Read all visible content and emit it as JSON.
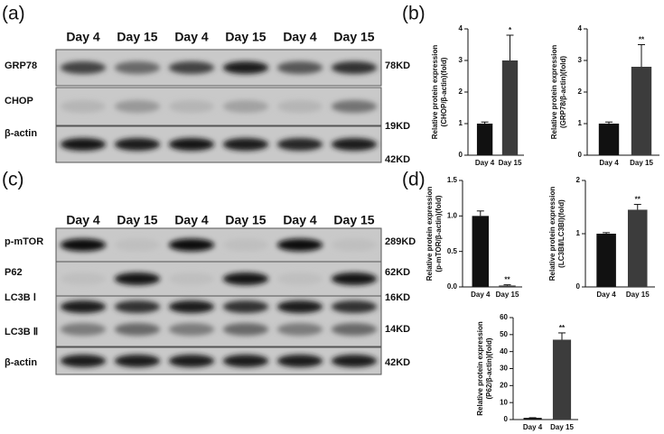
{
  "panel_labels": [
    "(a)",
    "(b)",
    "(c)",
    "(d)"
  ],
  "blots": [
    {
      "header": [
        "Day 4",
        "Day 15",
        "Day 4",
        "Day 15",
        "Day 4",
        "Day 15"
      ],
      "rows": [
        {
          "label": "GRP78",
          "kd": "78KD"
        },
        {
          "label": "CHOP",
          "kd": "19KD"
        },
        {
          "label": "β-actin",
          "kd": "42KD"
        }
      ]
    },
    {
      "header": [
        "Day 4",
        "Day 15",
        "Day 4",
        "Day 15",
        "Day 4",
        "Day 15"
      ],
      "rows": [
        {
          "label": "p-mTOR",
          "kd": "289KD"
        },
        {
          "label": "P62",
          "kd": "62KD"
        },
        {
          "label": "LC3B Ⅰ",
          "kd": "16KD"
        },
        {
          "label": "LC3B Ⅱ",
          "kd": "14KD"
        },
        {
          "label": "β-actin",
          "kd": "42KD"
        }
      ]
    }
  ],
  "chart_data": [
    {
      "type": "bar",
      "ylabel": [
        "Relative protein expression",
        "(CHOP/β-actin)(fold)"
      ],
      "categories": [
        "Day 4",
        "Day 15"
      ],
      "values": [
        1.0,
        3.0
      ],
      "errors": [
        0.05,
        0.8
      ],
      "annotation": "*",
      "colors": [
        "#111111",
        "#3c3c3c"
      ],
      "ylim": [
        0,
        4
      ],
      "yticks": [
        0,
        1,
        2,
        3,
        4
      ]
    },
    {
      "type": "bar",
      "ylabel": [
        "Relative protein expression",
        "(GRP78/β-actin)(fold)"
      ],
      "categories": [
        "Day 4",
        "Day 15"
      ],
      "values": [
        1.0,
        2.8
      ],
      "errors": [
        0.05,
        0.7
      ],
      "annotation": "**",
      "colors": [
        "#111111",
        "#3c3c3c"
      ],
      "ylim": [
        0,
        4
      ],
      "yticks": [
        0,
        1,
        2,
        3,
        4
      ]
    },
    {
      "type": "bar",
      "ylabel": [
        "Relative protein expression",
        "(p-mTOR/β-actin)(fold)"
      ],
      "categories": [
        "Day 4",
        "Day 15"
      ],
      "values": [
        1.0,
        0.02
      ],
      "errors": [
        0.07,
        0.01
      ],
      "annotation": "**",
      "colors": [
        "#111111",
        "#3c3c3c"
      ],
      "ylim": [
        0,
        1.5
      ],
      "yticks": [
        {
          "value": 0,
          "label": "0.0"
        },
        0.5,
        {
          "value": 1,
          "label": "1.0"
        },
        1.5
      ]
    },
    {
      "type": "bar",
      "ylabel": [
        "Relative protein expression",
        "(LC3BⅡ/LC3BⅠ)(fold)"
      ],
      "categories": [
        "Day 4",
        "Day 15"
      ],
      "values": [
        1.0,
        1.45
      ],
      "errors": [
        0.02,
        0.1
      ],
      "annotation": "**",
      "colors": [
        "#111111",
        "#3c3c3c"
      ],
      "ylim": [
        0,
        2
      ],
      "yticks": [
        0,
        1,
        2
      ]
    },
    {
      "type": "bar",
      "ylabel": [
        "Relative protein expression",
        "(P62/β-actin)(fold)"
      ],
      "categories": [
        "Day 4",
        "Day 15"
      ],
      "values": [
        1,
        47
      ],
      "errors": [
        0.1,
        4
      ],
      "annotation": "**",
      "colors": [
        "#111111",
        "#3c3c3c"
      ],
      "ylim": [
        0,
        60
      ],
      "yticks": [
        0,
        10,
        20,
        30,
        40,
        50,
        60
      ]
    }
  ]
}
